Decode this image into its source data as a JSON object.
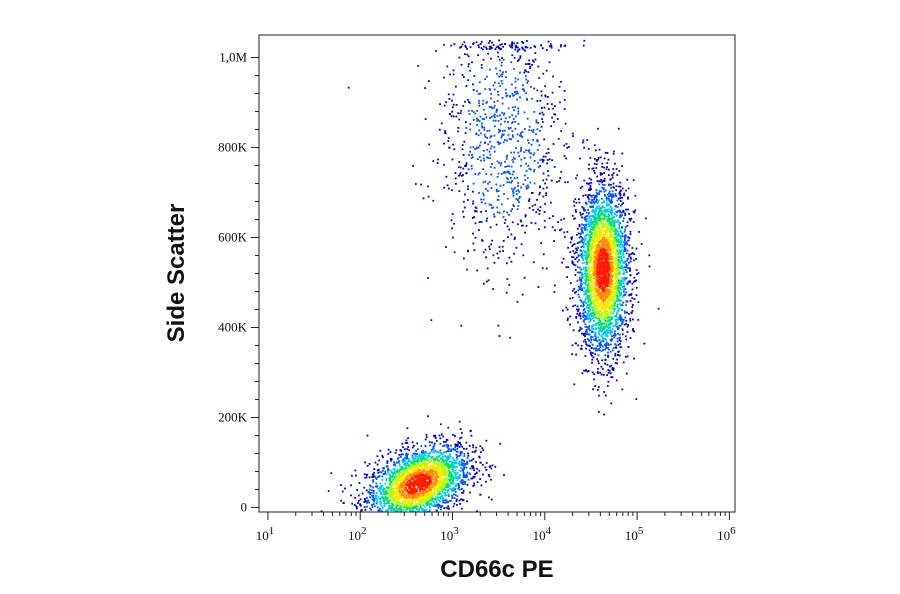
{
  "chart_data": {
    "type": "scatter",
    "subtype": "flow-cytometry density dot plot",
    "xlabel": "CD66c PE",
    "ylabel": "Side Scatter",
    "x_scale": "log",
    "y_scale": "linear",
    "xlim": [
      8,
      1150000
    ],
    "ylim": [
      -10000,
      1050000
    ],
    "x_ticks": [
      {
        "value": 10,
        "base": "10",
        "exp": "1"
      },
      {
        "value": 100,
        "base": "10",
        "exp": "2"
      },
      {
        "value": 1000,
        "base": "10",
        "exp": "3"
      },
      {
        "value": 10000,
        "base": "10",
        "exp": "4"
      },
      {
        "value": 100000,
        "base": "10",
        "exp": "5"
      },
      {
        "value": 1000000,
        "base": "10",
        "exp": "6"
      }
    ],
    "y_ticks": [
      {
        "value": 0,
        "label": "0"
      },
      {
        "value": 200000,
        "label": "200K"
      },
      {
        "value": 400000,
        "label": "400K"
      },
      {
        "value": 600000,
        "label": "600K"
      },
      {
        "value": 800000,
        "label": "800K"
      },
      {
        "value": 1000000,
        "label": "1,0M"
      }
    ],
    "grid": false,
    "color_scale": [
      "#0000c8",
      "#0050ff",
      "#00c8ff",
      "#00e070",
      "#b0ff00",
      "#ffe600",
      "#ff8800",
      "#ff1a00"
    ],
    "populations": [
      {
        "x_center": 420,
        "y_center": 55000,
        "x_spread_decades": 0.28,
        "y_spread": 40000,
        "count": 2600
      },
      {
        "x_center": 42000,
        "y_center": 530000,
        "x_spread_decades": 0.14,
        "y_spread": 95000,
        "count": 3200
      },
      {
        "x_center": 3500,
        "y_center": 820000,
        "x_spread_decades": 0.35,
        "y_spread": 150000,
        "count": 900
      }
    ]
  }
}
